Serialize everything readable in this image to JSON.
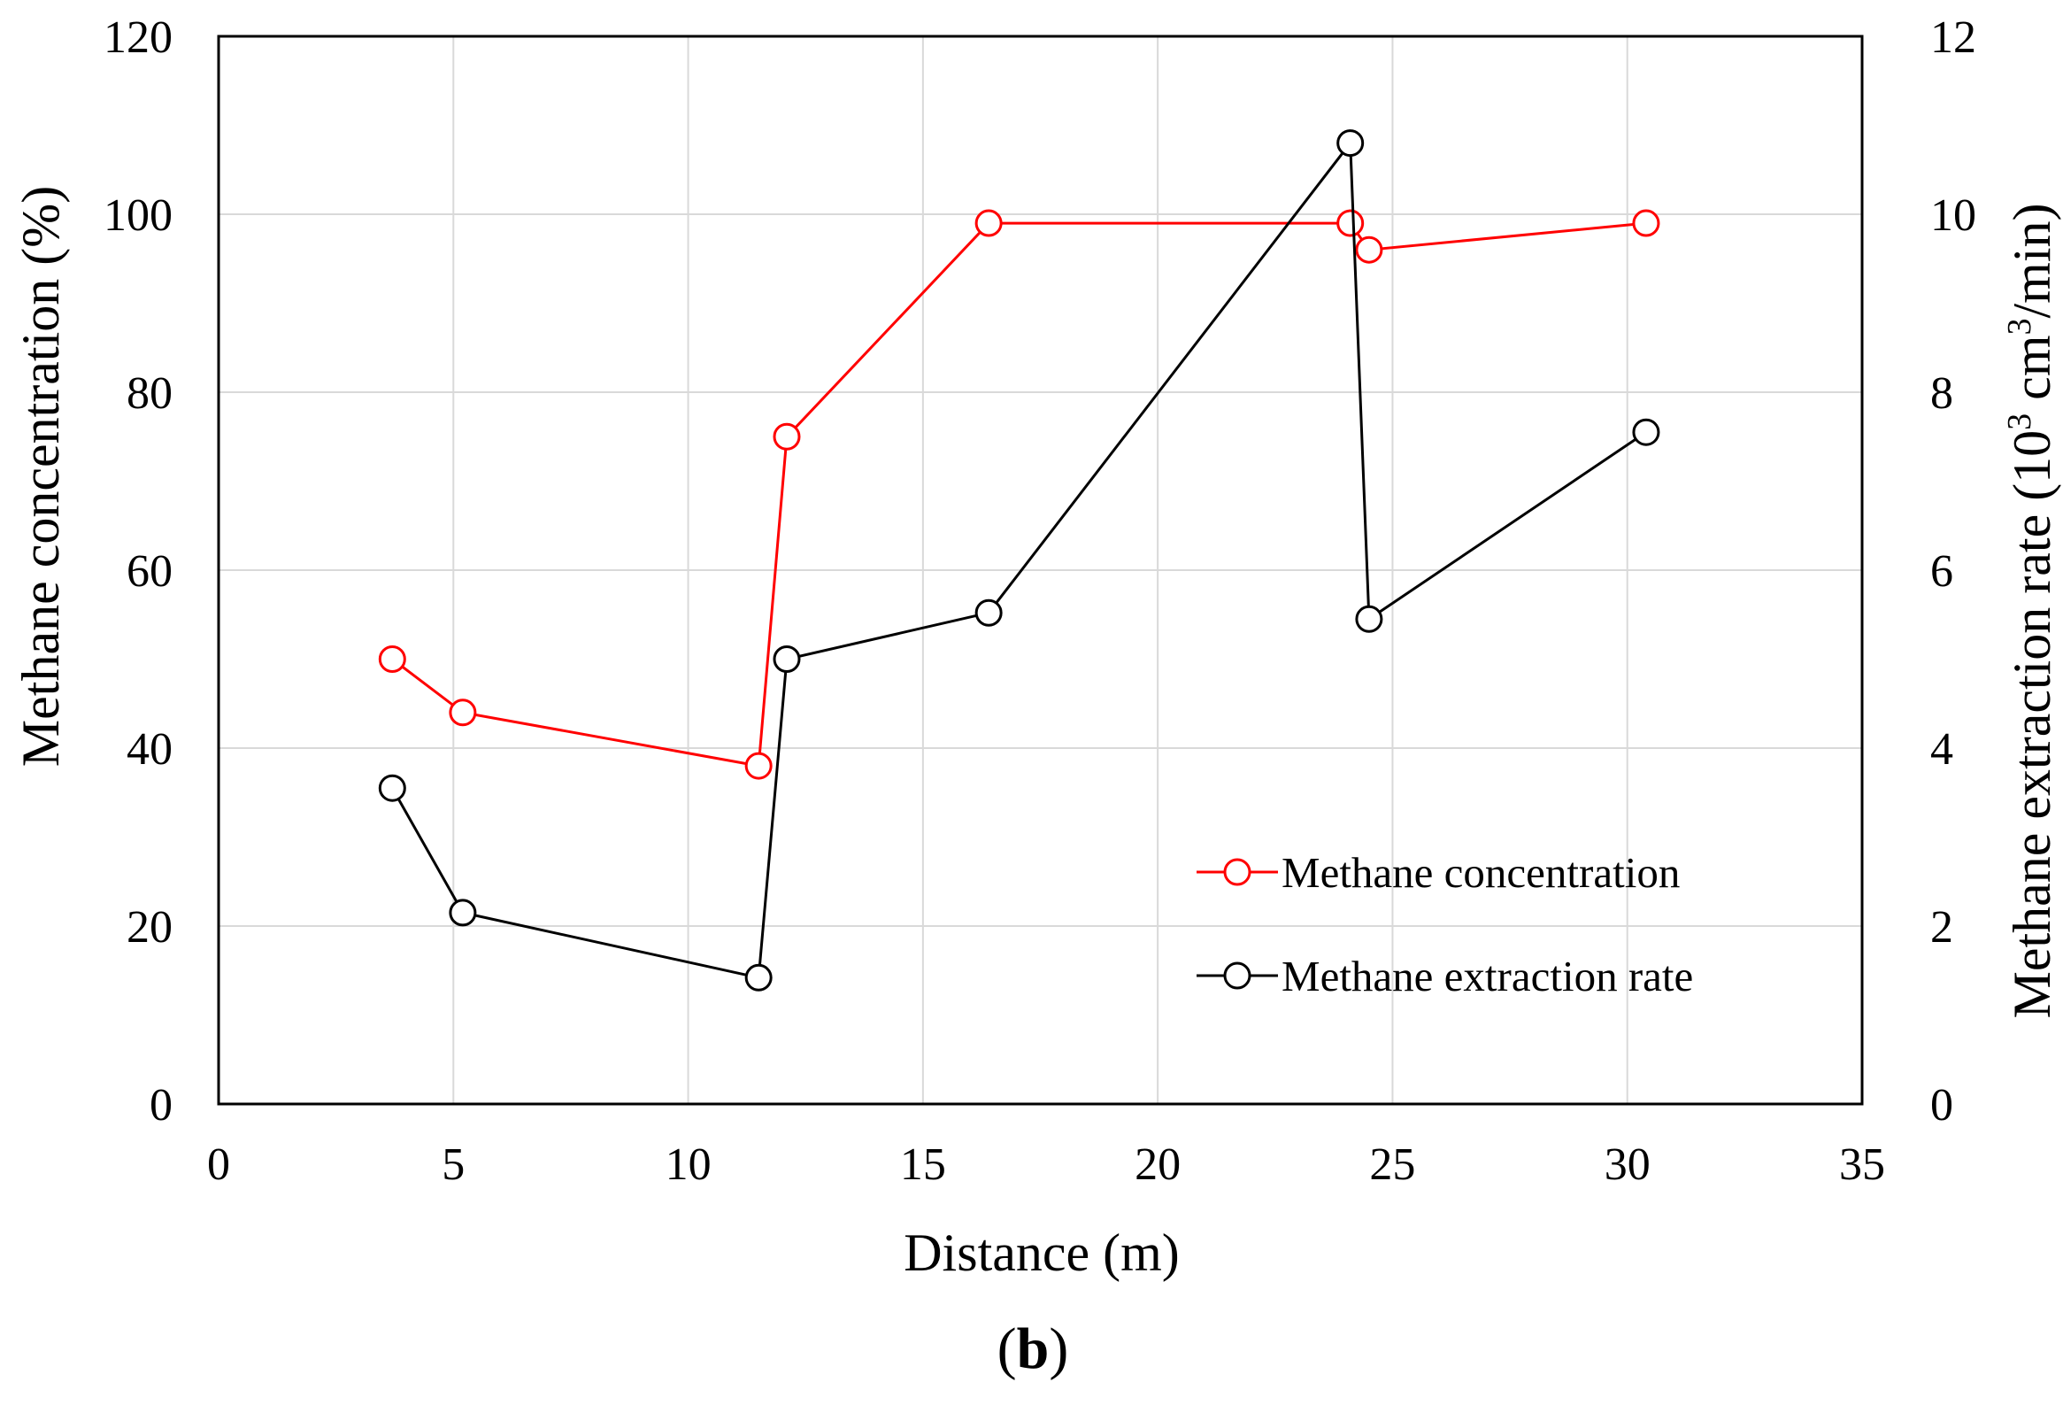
{
  "chart_data": {
    "type": "line",
    "title": "",
    "panel_label": "(b)",
    "panel_label_parts": {
      "open": "(",
      "letter": "b",
      "close": ")"
    },
    "xlabel": "Distance (m)",
    "ylabel_left": "Methane concentration (%)",
    "ylabel_right_parts": {
      "before": "Methane extraction rate (10",
      "sup": "3",
      "middle": " cm",
      "sup2": "3",
      "after": "/min)"
    },
    "xlim": [
      0,
      35
    ],
    "xticks": [
      0,
      5,
      10,
      15,
      20,
      25,
      30,
      35
    ],
    "ylim_left": [
      0,
      120
    ],
    "yticks_left": [
      0,
      20,
      40,
      60,
      80,
      100,
      120
    ],
    "ylim_right": [
      0,
      12
    ],
    "yticks_right": [
      0,
      2,
      4,
      6,
      8,
      10,
      12
    ],
    "grid": true,
    "legend_position": "bottom-right",
    "series": [
      {
        "name": "Methane concentration",
        "axis": "left",
        "color": "#ff0000",
        "marker": "open-circle",
        "x": [
          3.7,
          5.2,
          11.5,
          12.1,
          16.4,
          24.1,
          24.5,
          30.4
        ],
        "y": [
          50,
          44,
          38,
          75,
          99,
          99,
          96,
          99
        ]
      },
      {
        "name": "Methane extraction rate",
        "axis": "right",
        "color": "#000000",
        "marker": "open-circle",
        "x": [
          3.7,
          5.2,
          11.5,
          12.1,
          16.4,
          24.1,
          24.5,
          30.4
        ],
        "y": [
          3.55,
          2.15,
          1.42,
          5.0,
          5.52,
          10.8,
          5.45,
          7.55
        ]
      }
    ]
  }
}
